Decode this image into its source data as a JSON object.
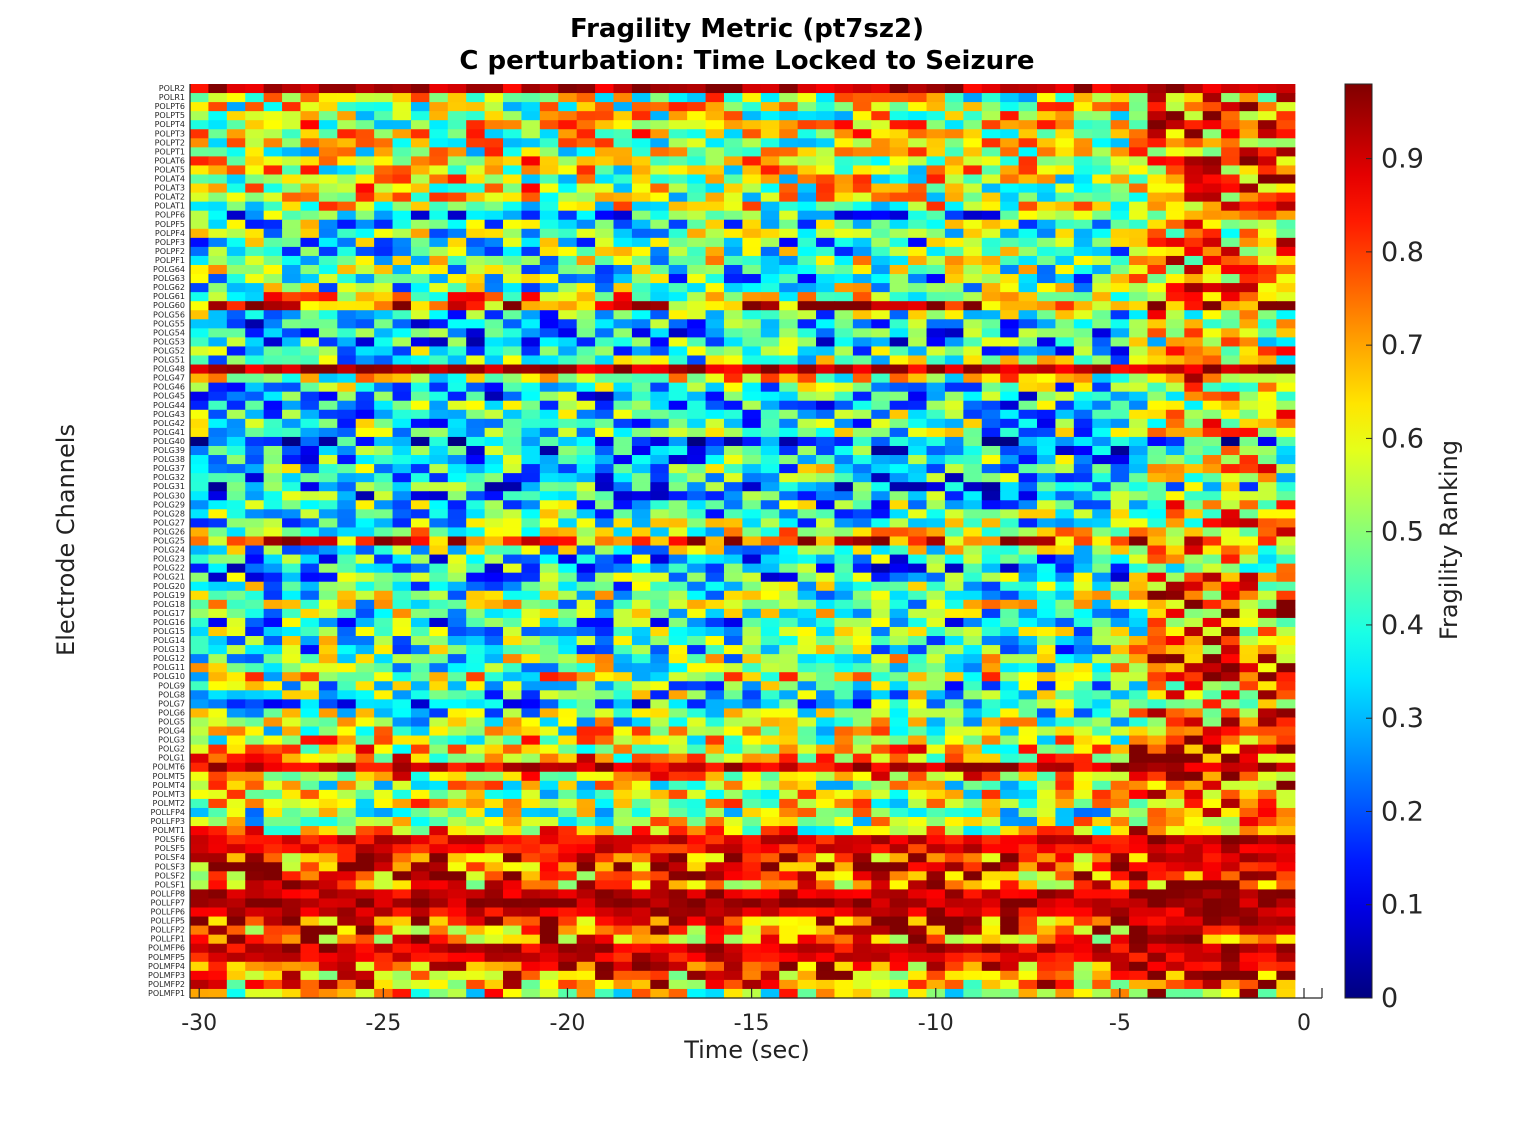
{
  "chart_data": {
    "type": "heatmap",
    "title": "Fragility Metric (pt7sz2)",
    "subtitle": "C perturbation:  Time Locked to Seizure",
    "xlabel": "Time (sec)",
    "ylabel": "Electrode Channels",
    "colorbar_label": "Fragility Ranking",
    "colormap": "jet",
    "color_range": [
      0,
      0.98
    ],
    "xlim": [
      -30.25,
      0
    ],
    "x_ticks": [
      -30,
      -25,
      -20,
      -15,
      -10,
      -5,
      0
    ],
    "x_tick_labels": [
      "-30",
      "-25",
      "-20",
      "-15",
      "-10",
      "-5",
      "0"
    ],
    "colorbar_ticks": [
      0,
      0.1,
      0.2,
      0.3,
      0.4,
      0.5,
      0.6,
      0.7,
      0.8,
      0.9
    ],
    "colorbar_tick_labels": [
      "0",
      "0.1",
      "0.2",
      "0.3",
      "0.4",
      "0.5",
      "0.6",
      "0.7",
      "0.8",
      "0.9"
    ],
    "time_bins": 60,
    "time_start": -30,
    "time_step": 0.5,
    "channels": [
      "POLR2",
      "POLR1",
      "POLPT6",
      "POLPT5",
      "POLPT4",
      "POLPT3",
      "POLPT2",
      "POLPT1",
      "POLAT6",
      "POLAT5",
      "POLAT4",
      "POLAT3",
      "POLAT2",
      "POLAT1",
      "POLPF6",
      "POLPF5",
      "POLPF4",
      "POLPF3",
      "POLPF2",
      "POLPF1",
      "POLG64",
      "POLG63",
      "POLG62",
      "POLG61",
      "POLG60",
      "POLG56",
      "POLG55",
      "POLG54",
      "POLG53",
      "POLG52",
      "POLG51",
      "POLG48",
      "POLG47",
      "POLG46",
      "POLG45",
      "POLG44",
      "POLG43",
      "POLG42",
      "POLG41",
      "POLG40",
      "POLG39",
      "POLG38",
      "POLG37",
      "POLG32",
      "POLG31",
      "POLG30",
      "POLG29",
      "POLG28",
      "POLG27",
      "POLG26",
      "POLG25",
      "POLG24",
      "POLG23",
      "POLG22",
      "POLG21",
      "POLG20",
      "POLG19",
      "POLG18",
      "POLG17",
      "POLG16",
      "POLG15",
      "POLG14",
      "POLG13",
      "POLG12",
      "POLG11",
      "POLG10",
      "POLG9",
      "POLG8",
      "POLG7",
      "POLG6",
      "POLG5",
      "POLG4",
      "POLG3",
      "POLG2",
      "POLG1",
      "POLMT6",
      "POLMT5",
      "POLMT4",
      "POLMT3",
      "POLMT2",
      "POLLFP4",
      "POLLFP3",
      "POLMT1",
      "POLSF6",
      "POLSF5",
      "POLSF4",
      "POLSF3",
      "POLSF2",
      "POLSF1",
      "POLLFP8",
      "POLLFP7",
      "POLLFP6",
      "POLLFP5",
      "POLLFP2",
      "POLLFP1",
      "POLMFP6",
      "POLMFP5",
      "POLMFP4",
      "POLMFP3",
      "POLMFP2",
      "POLMFP1"
    ],
    "channel_mean_pre_seizure": [
      0.92,
      0.55,
      0.55,
      0.56,
      0.58,
      0.6,
      0.55,
      0.55,
      0.62,
      0.56,
      0.56,
      0.58,
      0.55,
      0.55,
      0.35,
      0.42,
      0.45,
      0.4,
      0.42,
      0.48,
      0.45,
      0.4,
      0.45,
      0.6,
      0.8,
      0.4,
      0.3,
      0.3,
      0.32,
      0.38,
      0.45,
      0.92,
      0.55,
      0.4,
      0.32,
      0.35,
      0.4,
      0.38,
      0.4,
      0.2,
      0.3,
      0.35,
      0.42,
      0.33,
      0.3,
      0.32,
      0.38,
      0.4,
      0.42,
      0.55,
      0.8,
      0.45,
      0.35,
      0.32,
      0.35,
      0.42,
      0.45,
      0.48,
      0.45,
      0.35,
      0.4,
      0.45,
      0.4,
      0.48,
      0.5,
      0.55,
      0.4,
      0.42,
      0.35,
      0.45,
      0.48,
      0.55,
      0.58,
      0.62,
      0.65,
      0.9,
      0.65,
      0.55,
      0.55,
      0.58,
      0.5,
      0.52,
      0.62,
      0.88,
      0.86,
      0.8,
      0.82,
      0.75,
      0.72,
      0.9,
      0.95,
      0.9,
      0.85,
      0.8,
      0.75,
      0.9,
      0.88,
      0.8,
      0.72,
      0.7,
      0.58
    ],
    "channel_mean_late": [
      0.92,
      0.72,
      0.75,
      0.75,
      0.75,
      0.75,
      0.75,
      0.75,
      0.8,
      0.75,
      0.75,
      0.75,
      0.75,
      0.75,
      0.7,
      0.7,
      0.65,
      0.7,
      0.7,
      0.68,
      0.7,
      0.65,
      0.7,
      0.8,
      0.85,
      0.62,
      0.6,
      0.58,
      0.55,
      0.6,
      0.6,
      0.92,
      0.75,
      0.65,
      0.55,
      0.55,
      0.62,
      0.6,
      0.6,
      0.25,
      0.5,
      0.55,
      0.65,
      0.5,
      0.4,
      0.5,
      0.6,
      0.62,
      0.65,
      0.72,
      0.82,
      0.65,
      0.6,
      0.6,
      0.65,
      0.7,
      0.72,
      0.75,
      0.72,
      0.65,
      0.7,
      0.72,
      0.7,
      0.75,
      0.75,
      0.78,
      0.7,
      0.72,
      0.68,
      0.72,
      0.75,
      0.8,
      0.8,
      0.82,
      0.82,
      0.9,
      0.82,
      0.78,
      0.78,
      0.8,
      0.75,
      0.75,
      0.8,
      0.92,
      0.9,
      0.88,
      0.88,
      0.85,
      0.82,
      0.95,
      0.96,
      0.92,
      0.9,
      0.88,
      0.85,
      0.92,
      0.9,
      0.88,
      0.85,
      0.82,
      0.7
    ]
  }
}
